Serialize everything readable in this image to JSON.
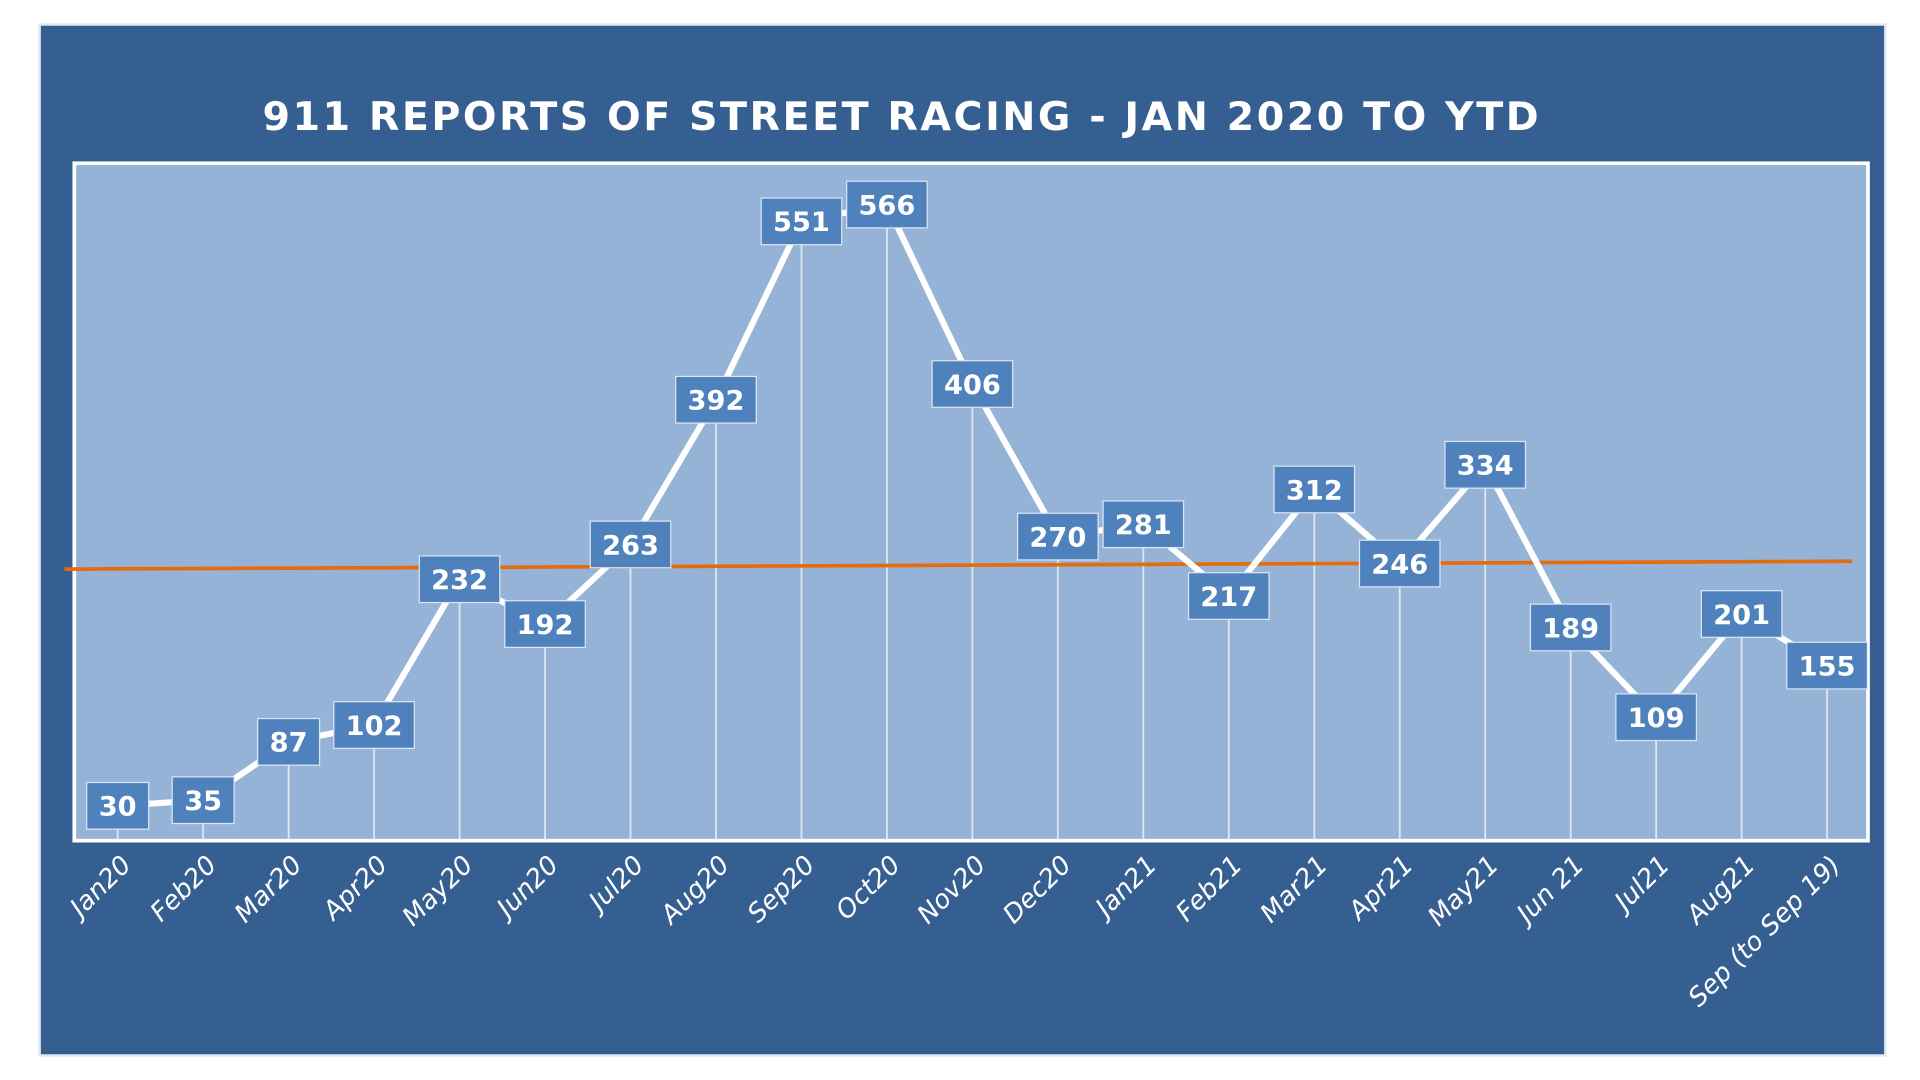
{
  "chart_data": {
    "type": "line",
    "title": "911 REPORTS OF STREET RACING - JAN 2020 TO YTD",
    "xlabel": "",
    "ylabel": "",
    "ylim": [
      0,
      600
    ],
    "grid": false,
    "legend": "none",
    "categories": [
      "Jan20",
      "Feb20",
      "Mar20",
      "Apr20",
      "May20",
      "Jun20",
      "Jul20",
      "Aug20",
      "Sep20",
      "Oct20",
      "Nov20",
      "Dec20",
      "Jan21",
      "Feb21",
      "Mar21",
      "Apr21",
      "May21",
      "Jun 21",
      "Jul21",
      "Aug21",
      "Sep (to Sep 19)"
    ],
    "series": [
      {
        "name": "911 reports",
        "values": [
          30,
          35,
          87,
          102,
          232,
          192,
          263,
          392,
          551,
          566,
          406,
          270,
          281,
          217,
          312,
          246,
          334,
          189,
          109,
          201,
          155
        ]
      }
    ],
    "average_line": {
      "start": 241,
      "end": 248
    }
  },
  "colors": {
    "panel": "#365f91",
    "plot": "#95b3d7",
    "line": "#ffffff",
    "label_box": "#4f81bd",
    "average": "#e46c0a"
  }
}
